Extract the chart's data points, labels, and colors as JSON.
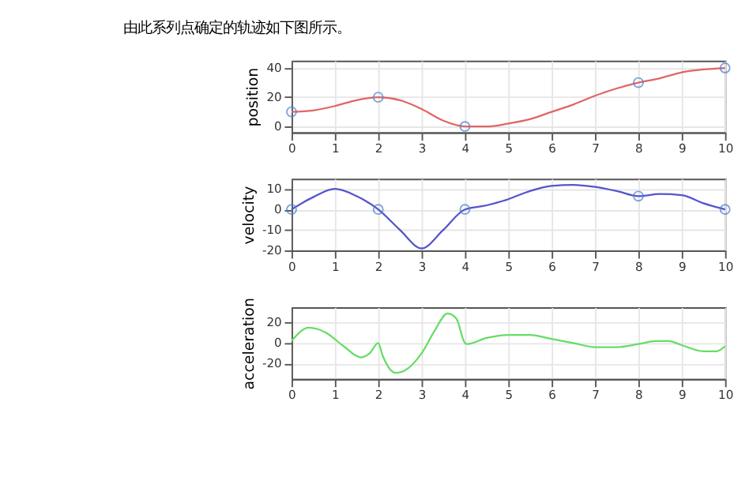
{
  "chart_data": [
    {
      "type": "line",
      "title": "由此系列点确定的轨迹如下图所示。",
      "ylabel": "position",
      "xlim": [
        0,
        10
      ],
      "xticks": [
        0,
        1,
        2,
        3,
        4,
        5,
        6,
        7,
        8,
        9,
        10
      ],
      "ylim": [
        -4,
        45
      ],
      "yticks": [
        0,
        20,
        40
      ],
      "grid": true,
      "legend": false,
      "series": [
        {
          "type": "line",
          "color": "#e06666",
          "x": [
            0,
            0.5,
            1,
            1.5,
            2,
            2.5,
            3,
            3.5,
            4,
            4.5,
            5,
            5.5,
            6,
            6.5,
            7,
            7.5,
            8,
            8.5,
            9,
            9.5,
            10
          ],
          "values": [
            10,
            11,
            14,
            18,
            20,
            18,
            12,
            4,
            0,
            0,
            2,
            5,
            10,
            15,
            21,
            26,
            30,
            33,
            37,
            39,
            40
          ]
        },
        {
          "type": "scatter",
          "marker": "circle",
          "color": "#4a7fd0",
          "x": [
            0,
            2,
            4,
            8,
            10
          ],
          "values": [
            10,
            20,
            0,
            30,
            40
          ]
        }
      ]
    },
    {
      "type": "line",
      "ylabel": "velocity",
      "xlim": [
        0,
        10
      ],
      "xticks": [
        0,
        1,
        2,
        3,
        4,
        5,
        6,
        7,
        8,
        9,
        10
      ],
      "ylim": [
        -20,
        15
      ],
      "yticks": [
        -20,
        -10,
        0,
        10
      ],
      "grid": true,
      "legend": false,
      "series": [
        {
          "type": "line",
          "color": "#5555cc",
          "x": [
            0,
            0.5,
            1,
            1.5,
            2,
            2.5,
            3,
            3.5,
            4,
            4.5,
            5,
            5.5,
            6,
            6.5,
            7,
            7.5,
            8,
            8.5,
            9,
            9.5,
            10
          ],
          "values": [
            0,
            6,
            10,
            6.5,
            0,
            -10,
            -19,
            -10,
            0,
            2,
            5,
            9,
            11.5,
            12,
            11,
            9,
            6.5,
            7.5,
            7,
            3,
            0
          ]
        },
        {
          "type": "scatter",
          "marker": "circle",
          "color": "#4a7fd0",
          "x": [
            0,
            2,
            4,
            8,
            10
          ],
          "values": [
            0,
            0,
            0,
            6.5,
            0
          ]
        }
      ]
    },
    {
      "type": "line",
      "ylabel": "acceleration",
      "xlim": [
        0,
        10
      ],
      "xticks": [
        0,
        1,
        2,
        3,
        4,
        5,
        6,
        7,
        8,
        9,
        10
      ],
      "ylim": [
        -35,
        35
      ],
      "yticks": [
        -20,
        0,
        20
      ],
      "grid": true,
      "legend": false,
      "series": [
        {
          "type": "line",
          "color": "#66dd66",
          "x": [
            0,
            0.4,
            0.8,
            1.2,
            1.6,
            1.8,
            2,
            2.1,
            2.4,
            2.6,
            3,
            3.3,
            3.6,
            3.8,
            4,
            4.05,
            4.5,
            5,
            5.5,
            6,
            6.5,
            7,
            7.5,
            8,
            8.4,
            8.7,
            9,
            9.5,
            9.8,
            10
          ],
          "values": [
            2,
            15,
            10,
            -3,
            -14,
            -10,
            0,
            -12,
            -29,
            -27,
            -10,
            12,
            29,
            24,
            0,
            -1,
            5,
            8,
            8,
            4,
            0,
            -4,
            -4,
            -1,
            2,
            2,
            -2,
            -8,
            -8,
            -3
          ]
        }
      ]
    }
  ]
}
